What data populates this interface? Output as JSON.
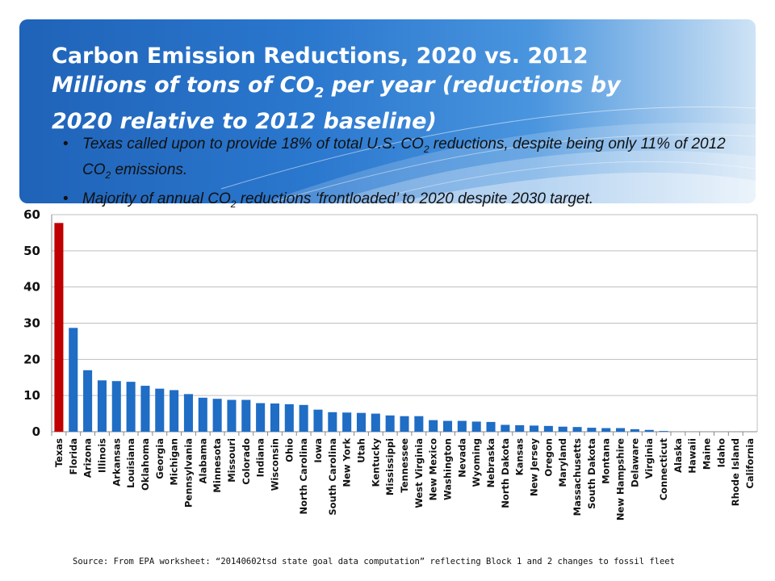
{
  "header": {
    "title_line1": "Carbon Emission Reductions, 2020 vs. 2012",
    "title_line2a": "Millions of tons of CO",
    "title_sub": "2",
    "title_line2b": " per year (reductions by",
    "title_line3": "2020 relative to 2012 baseline)"
  },
  "bullets": [
    {
      "text_a": "Texas called upon to provide 18% of total U.S. CO",
      "sub1": "2",
      "text_b": " reductions, despite being only 11% of 2012 CO",
      "sub2": "2",
      "text_c": " emissions."
    },
    {
      "text_a": "Majority of annual CO",
      "sub1": "2",
      "text_b": " reductions ‘frontloaded’ to 2020 despite 2030 target.",
      "sub2": "",
      "text_c": ""
    }
  ],
  "bullet_symbol": "•",
  "source": "Source: From EPA worksheet: “20140602tsd state goal data computation” reflecting Block 1 and 2 changes to fossil fleet",
  "colors": {
    "highlight": "#c00000",
    "bar": "#1f6dc5",
    "grid": "#bfbfbf"
  },
  "chart_data": {
    "type": "bar",
    "ylim": [
      0,
      60
    ],
    "yticks": [
      0,
      10,
      20,
      30,
      40,
      50,
      60
    ],
    "grid": true,
    "highlight_category": "Texas",
    "categories": [
      "Texas",
      "Florida",
      "Arizona",
      "Illinois",
      "Arkansas",
      "Louisiana",
      "Oklahoma",
      "Georgia",
      "Michigan",
      "Pennsylvania",
      "Alabama",
      "Minnesota",
      "Missouri",
      "Colorado",
      "Indiana",
      "Wisconsin",
      "Ohio",
      "North Carolina",
      "Iowa",
      "South Carolina",
      "New York",
      "Utah",
      "Kentucky",
      "Mississippi",
      "Tennessee",
      "West Virginia",
      "New Mexico",
      "Washington",
      "Nevada",
      "Wyoming",
      "Nebraska",
      "North Dakota",
      "Kansas",
      "New Jersey",
      "Oregon",
      "Maryland",
      "Massachusetts",
      "South Dakota",
      "Montana",
      "New Hampshire",
      "Delaware",
      "Virginia",
      "Connecticut",
      "Alaska",
      "Hawaii",
      "Maine",
      "Idaho",
      "Rhode Island",
      "California"
    ],
    "values": [
      57.7,
      28.7,
      17.0,
      14.2,
      14.0,
      13.8,
      12.7,
      11.9,
      11.5,
      10.4,
      9.4,
      9.1,
      8.8,
      8.8,
      7.9,
      7.8,
      7.6,
      7.4,
      6.1,
      5.4,
      5.3,
      5.2,
      5.0,
      4.5,
      4.3,
      4.3,
      3.2,
      3.0,
      3.0,
      2.8,
      2.7,
      1.9,
      1.8,
      1.7,
      1.6,
      1.4,
      1.3,
      1.1,
      1.0,
      1.0,
      0.7,
      0.5,
      0.2,
      0,
      0,
      0,
      0,
      0,
      0
    ]
  }
}
